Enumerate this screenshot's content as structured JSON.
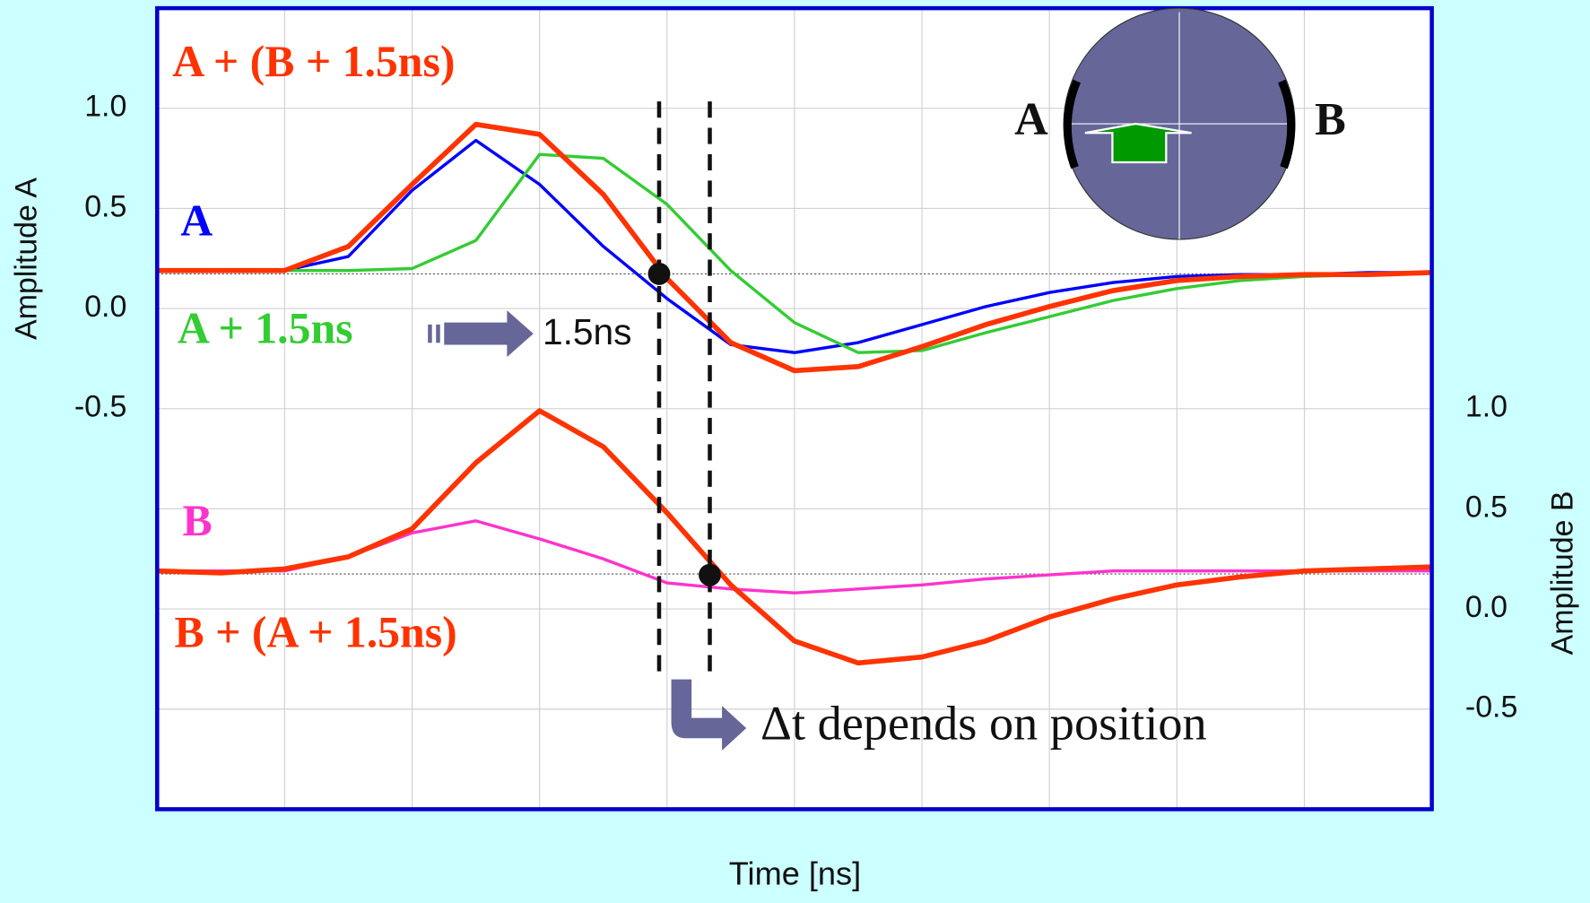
{
  "chart_data": {
    "type": "line",
    "xlabel": "Time [ns]",
    "ylabel": "Amplitude A",
    "y2label": "Amplitude B",
    "x": [
      0,
      0.5,
      1,
      1.5,
      2,
      2.5,
      3,
      3.5,
      4,
      4.5,
      5,
      5.5,
      6,
      6.5,
      7,
      7.5,
      8,
      8.5,
      9,
      9.5,
      10
    ],
    "xlim": [
      0,
      10
    ],
    "xticks": [
      0,
      1,
      2,
      3,
      4,
      5,
      6,
      7,
      8,
      9,
      10
    ],
    "ylim": [
      -2.5,
      1.5
    ],
    "yticks": [
      {
        "value": -0.5,
        "label": "-0.5"
      },
      {
        "value": 0,
        "label": "0.0"
      },
      {
        "value": 0.5,
        "label": "0.5"
      },
      {
        "value": 1,
        "label": "1.0"
      }
    ],
    "ygrid": [
      -2.5,
      -2,
      -1.5,
      -1,
      -0.5,
      0,
      0.5,
      1,
      1.5
    ],
    "y2lim": [
      -1,
      3
    ],
    "y2ticks": [
      {
        "value": -0.5,
        "label": "-0.5"
      },
      {
        "value": 0,
        "label": "0.0"
      },
      {
        "value": 0.5,
        "label": "0.5"
      },
      {
        "value": 1,
        "label": "1.0"
      }
    ],
    "grid": true,
    "series": [
      {
        "name": "A",
        "color": "#0000ff",
        "axis": "y",
        "width": 3,
        "values": [
          0.19,
          0.19,
          0.19,
          0.26,
          0.59,
          0.84,
          0.62,
          0.31,
          0.05,
          -0.18,
          -0.22,
          -0.17,
          -0.08,
          0.01,
          0.08,
          0.13,
          0.16,
          0.17,
          0.17,
          0.18,
          0.18
        ]
      },
      {
        "name": "A + 1.5ns",
        "color": "#33cc33",
        "axis": "y",
        "width": 3,
        "values": [
          0.19,
          0.19,
          0.19,
          0.19,
          0.2,
          0.34,
          0.77,
          0.75,
          0.52,
          0.19,
          -0.07,
          -0.22,
          -0.21,
          -0.12,
          -0.04,
          0.04,
          0.1,
          0.14,
          0.16,
          0.17,
          0.18
        ]
      },
      {
        "name": "A + (B + 1.5ns)",
        "color": "#ff3300",
        "axis": "y",
        "width": 5,
        "values": [
          0.19,
          0.19,
          0.19,
          0.31,
          0.62,
          0.92,
          0.87,
          0.57,
          0.15,
          -0.17,
          -0.31,
          -0.29,
          -0.19,
          -0.08,
          0.01,
          0.09,
          0.14,
          0.16,
          0.17,
          0.17,
          0.18
        ]
      },
      {
        "name": "B",
        "color": "#ff33cc",
        "axis": "y2",
        "width": 3,
        "values": [
          0.19,
          0.19,
          0.19,
          0.26,
          0.38,
          0.44,
          0.35,
          0.25,
          0.13,
          0.1,
          0.08,
          0.1,
          0.12,
          0.15,
          0.17,
          0.19,
          0.19,
          0.19,
          0.19,
          0.19,
          0.19
        ]
      },
      {
        "name": "B + (A + 1.5ns)",
        "color": "#ff3300",
        "axis": "y2",
        "width": 5,
        "values": [
          0.19,
          0.18,
          0.2,
          0.26,
          0.4,
          0.73,
          0.99,
          0.81,
          0.48,
          0.12,
          -0.16,
          -0.27,
          -0.24,
          -0.16,
          -0.04,
          0.05,
          0.12,
          0.16,
          0.19,
          0.2,
          0.21
        ]
      }
    ],
    "annotations": {
      "shift": "1.5ns",
      "note": "Δt depends on position",
      "inset_a": "A",
      "inset_b": "B"
    }
  }
}
